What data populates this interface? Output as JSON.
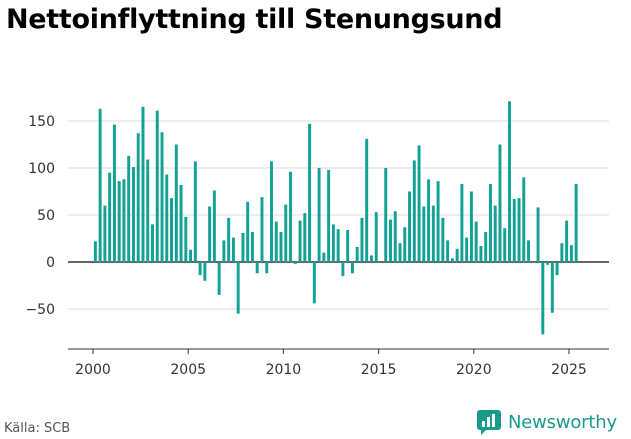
{
  "title": "Nettoinflyttning till Stenungsund",
  "source": "Källa: SCB",
  "brand": {
    "name": "Newsworthy",
    "icon": "newsworthy-logo-icon",
    "color": "#1a9a8a"
  },
  "colors": {
    "bar": "#13a195",
    "grid": "#dddddd",
    "zero_line": "#333333"
  },
  "chart_data": {
    "type": "bar",
    "xlabel": "",
    "ylabel": "",
    "x_ticks": [
      2000,
      2005,
      2010,
      2015,
      2020,
      2025
    ],
    "y_ticks": [
      -50,
      0,
      50,
      100,
      150
    ],
    "ylim": [
      -80,
      180
    ],
    "xlim": [
      1999.0,
      2026.0
    ],
    "grid": "horizontal",
    "frequency": "quarterly",
    "start": "2000-Q1",
    "values": [
      22,
      163,
      60,
      95,
      146,
      86,
      88,
      113,
      101,
      137,
      165,
      109,
      40,
      161,
      138,
      93,
      68,
      125,
      82,
      48,
      13,
      107,
      -14,
      -20,
      59,
      76,
      -35,
      23,
      47,
      26,
      -55,
      31,
      64,
      32,
      -12,
      69,
      -12,
      107,
      43,
      32,
      61,
      96,
      -2,
      44,
      52,
      147,
      -44,
      100,
      10,
      98,
      40,
      35,
      -15,
      34,
      -12,
      16,
      47,
      131,
      7,
      53,
      -1,
      100,
      45,
      54,
      20,
      37,
      75,
      108,
      124,
      59,
      88,
      60,
      86,
      47,
      23,
      4,
      14,
      83,
      26,
      75,
      43,
      17,
      32,
      83,
      60,
      125,
      36,
      171,
      67,
      68,
      90,
      23,
      0,
      58,
      -77,
      -3,
      -54,
      -14,
      20,
      44,
      18,
      83
    ]
  }
}
